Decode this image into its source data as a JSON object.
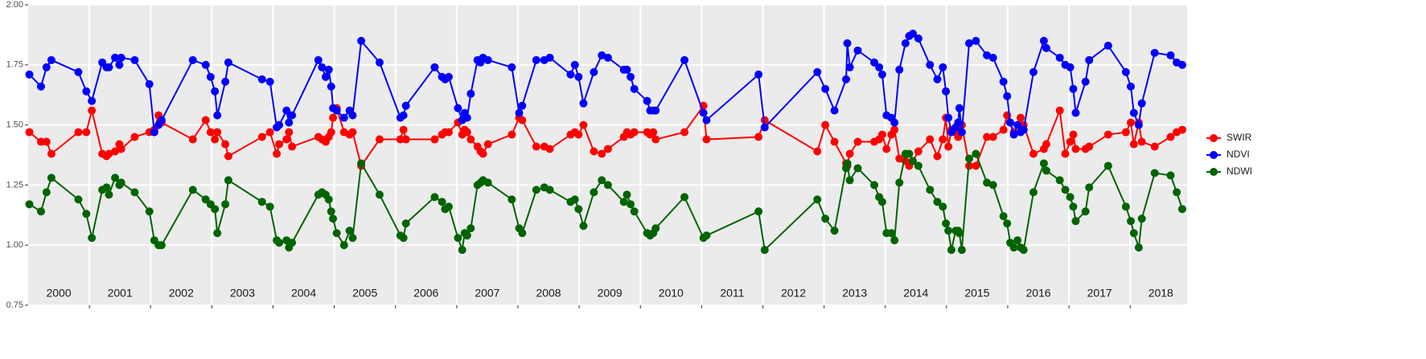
{
  "chart_data": {
    "type": "line",
    "x": [
      2000.02,
      2000.21,
      2000.3,
      2000.38,
      2000.82,
      2000.95,
      2001.04,
      2001.21,
      2001.28,
      2001.32,
      2001.42,
      2001.49,
      2001.52,
      2001.74,
      2001.98,
      2002.06,
      2002.13,
      2002.18,
      2002.69,
      2002.9,
      2002.98,
      2003.05,
      2003.09,
      2003.22,
      2003.27,
      2003.82,
      2003.95,
      2004.06,
      2004.1,
      2004.22,
      2004.26,
      2004.31,
      2004.74,
      2004.8,
      2004.86,
      2004.91,
      2004.95,
      2004.98,
      2005.04,
      2005.16,
      2005.25,
      2005.3,
      2005.44,
      2005.74,
      2006.08,
      2006.13,
      2006.17,
      2006.64,
      2006.76,
      2006.81,
      2006.87,
      2007.02,
      2007.09,
      2007.13,
      2007.17,
      2007.23,
      2007.34,
      2007.39,
      2007.43,
      2007.51,
      2007.9,
      2008.02,
      2008.07,
      2008.3,
      2008.43,
      2008.52,
      2008.86,
      2008.93,
      2008.99,
      2009.07,
      2009.24,
      2009.37,
      2009.47,
      2009.73,
      2009.78,
      2009.84,
      2009.9,
      2010.11,
      2010.16,
      2010.21,
      2010.25,
      2010.72,
      2011.03,
      2011.08,
      2011.93,
      2012.03,
      2012.89,
      2013.02,
      2013.17,
      2013.36,
      2013.38,
      2013.42,
      2013.55,
      2013.82,
      2013.9,
      2013.95,
      2014.02,
      2014.1,
      2014.15,
      2014.23,
      2014.33,
      2014.39,
      2014.45,
      2014.54,
      2014.73,
      2014.85,
      2014.94,
      2014.99,
      2015.03,
      2015.08,
      2015.15,
      2015.19,
      2015.21,
      2015.25,
      2015.37,
      2015.48,
      2015.66,
      2015.76,
      2015.93,
      2015.99,
      2016.04,
      2016.1,
      2016.16,
      2016.21,
      2016.26,
      2016.42,
      2016.59,
      2016.63,
      2016.85,
      2016.94,
      2017.02,
      2017.07,
      2017.11,
      2017.27,
      2017.33,
      2017.64,
      2017.93,
      2018.01,
      2018.06,
      2018.14,
      2018.19,
      2018.4,
      2018.66,
      2018.76,
      2018.85
    ],
    "series": [
      {
        "name": "SWIR",
        "color": "#ff0000",
        "values": [
          1.47,
          1.43,
          1.43,
          1.38,
          1.47,
          1.47,
          1.56,
          1.38,
          1.37,
          1.38,
          1.39,
          1.42,
          1.4,
          1.45,
          1.47,
          1.48,
          1.54,
          1.51,
          1.44,
          1.52,
          1.47,
          1.44,
          1.47,
          1.42,
          1.37,
          1.45,
          1.47,
          1.38,
          1.42,
          1.44,
          1.47,
          1.41,
          1.45,
          1.44,
          1.43,
          1.45,
          1.47,
          1.53,
          1.57,
          1.47,
          1.46,
          1.47,
          1.33,
          1.44,
          1.44,
          1.48,
          1.44,
          1.44,
          1.46,
          1.47,
          1.47,
          1.51,
          1.46,
          1.48,
          1.47,
          1.44,
          1.41,
          1.39,
          1.38,
          1.42,
          1.46,
          1.53,
          1.52,
          1.41,
          1.41,
          1.4,
          1.46,
          1.47,
          1.46,
          1.5,
          1.39,
          1.38,
          1.4,
          1.45,
          1.47,
          1.46,
          1.47,
          1.47,
          1.46,
          1.47,
          1.44,
          1.47,
          1.58,
          1.44,
          1.45,
          1.52,
          1.39,
          1.5,
          1.43,
          1.34,
          1.33,
          1.38,
          1.43,
          1.43,
          1.44,
          1.46,
          1.4,
          1.46,
          1.48,
          1.36,
          1.35,
          1.33,
          1.35,
          1.39,
          1.44,
          1.37,
          1.44,
          1.53,
          1.41,
          1.48,
          1.47,
          1.45,
          1.5,
          1.5,
          1.33,
          1.33,
          1.45,
          1.45,
          1.48,
          1.54,
          1.51,
          1.47,
          1.5,
          1.53,
          1.5,
          1.38,
          1.4,
          1.42,
          1.56,
          1.38,
          1.43,
          1.46,
          1.4,
          1.4,
          1.41,
          1.46,
          1.47,
          1.51,
          1.42,
          1.51,
          1.43,
          1.41,
          1.45,
          1.47,
          1.48
        ]
      },
      {
        "name": "NDVI",
        "color": "#0000ff",
        "values": [
          1.71,
          1.66,
          1.74,
          1.77,
          1.72,
          1.64,
          1.6,
          1.76,
          1.74,
          1.74,
          1.78,
          1.75,
          1.78,
          1.77,
          1.67,
          1.47,
          1.5,
          1.52,
          1.77,
          1.75,
          1.7,
          1.64,
          1.54,
          1.68,
          1.76,
          1.69,
          1.68,
          1.49,
          1.5,
          1.56,
          1.51,
          1.54,
          1.77,
          1.74,
          1.7,
          1.73,
          1.66,
          1.57,
          1.56,
          1.53,
          1.56,
          1.54,
          1.85,
          1.76,
          1.53,
          1.54,
          1.58,
          1.74,
          1.7,
          1.69,
          1.7,
          1.57,
          1.52,
          1.55,
          1.53,
          1.63,
          1.77,
          1.76,
          1.78,
          1.77,
          1.74,
          1.55,
          1.58,
          1.77,
          1.77,
          1.78,
          1.71,
          1.75,
          1.7,
          1.59,
          1.72,
          1.79,
          1.78,
          1.73,
          1.73,
          1.7,
          1.65,
          1.6,
          1.56,
          1.56,
          1.56,
          1.77,
          1.55,
          1.52,
          1.71,
          1.49,
          1.72,
          1.65,
          1.56,
          1.69,
          1.84,
          1.74,
          1.81,
          1.76,
          1.74,
          1.71,
          1.54,
          1.53,
          1.51,
          1.73,
          1.84,
          1.87,
          1.88,
          1.86,
          1.75,
          1.69,
          1.74,
          1.64,
          1.53,
          1.47,
          1.49,
          1.51,
          1.57,
          1.47,
          1.84,
          1.85,
          1.79,
          1.78,
          1.68,
          1.62,
          1.51,
          1.46,
          1.5,
          1.47,
          1.48,
          1.72,
          1.85,
          1.82,
          1.78,
          1.75,
          1.74,
          1.65,
          1.55,
          1.68,
          1.77,
          1.83,
          1.72,
          1.66,
          1.55,
          1.5,
          1.59,
          1.8,
          1.79,
          1.76,
          1.75
        ]
      },
      {
        "name": "NDWI",
        "color": "#006400",
        "values": [
          1.17,
          1.14,
          1.22,
          1.28,
          1.19,
          1.13,
          1.03,
          1.23,
          1.24,
          1.21,
          1.28,
          1.25,
          1.26,
          1.22,
          1.14,
          1.02,
          1.0,
          1.0,
          1.23,
          1.19,
          1.17,
          1.15,
          1.05,
          1.17,
          1.27,
          1.18,
          1.16,
          1.02,
          1.01,
          1.02,
          0.99,
          1.01,
          1.21,
          1.22,
          1.21,
          1.19,
          1.14,
          1.11,
          1.05,
          1.0,
          1.06,
          1.03,
          1.34,
          1.21,
          1.04,
          1.03,
          1.09,
          1.2,
          1.18,
          1.15,
          1.16,
          1.03,
          0.98,
          1.05,
          1.04,
          1.07,
          1.25,
          1.26,
          1.27,
          1.26,
          1.19,
          1.07,
          1.05,
          1.23,
          1.24,
          1.23,
          1.18,
          1.19,
          1.15,
          1.08,
          1.22,
          1.27,
          1.25,
          1.18,
          1.21,
          1.17,
          1.14,
          1.05,
          1.04,
          1.05,
          1.07,
          1.2,
          1.03,
          1.04,
          1.14,
          0.98,
          1.19,
          1.11,
          1.06,
          1.32,
          1.34,
          1.27,
          1.32,
          1.25,
          1.2,
          1.18,
          1.05,
          1.05,
          1.02,
          1.26,
          1.38,
          1.38,
          1.35,
          1.33,
          1.23,
          1.18,
          1.16,
          1.09,
          1.06,
          0.98,
          1.06,
          1.06,
          1.05,
          0.98,
          1.36,
          1.38,
          1.26,
          1.25,
          1.12,
          1.09,
          1.01,
          0.99,
          1.02,
          0.99,
          0.98,
          1.22,
          1.34,
          1.31,
          1.27,
          1.23,
          1.2,
          1.16,
          1.1,
          1.14,
          1.24,
          1.33,
          1.16,
          1.1,
          1.05,
          0.99,
          1.11,
          1.3,
          1.29,
          1.22,
          1.15
        ]
      }
    ],
    "xlim": [
      2000,
      2018.93
    ],
    "ylim": [
      0.75,
      2.0
    ],
    "yticks": [
      {
        "value": 0.75,
        "label": "0.75"
      },
      {
        "value": 1.0,
        "label": "1.00"
      },
      {
        "value": 1.25,
        "label": "1.25"
      },
      {
        "value": 1.5,
        "label": "1.50"
      },
      {
        "value": 1.75,
        "label": "1.75"
      },
      {
        "value": 2.0,
        "label": "2.00"
      }
    ],
    "xticks": [
      {
        "value": 2000.5,
        "label": "2000"
      },
      {
        "value": 2001.5,
        "label": "2001"
      },
      {
        "value": 2002.5,
        "label": "2002"
      },
      {
        "value": 2003.5,
        "label": "2003"
      },
      {
        "value": 2004.5,
        "label": "2004"
      },
      {
        "value": 2005.5,
        "label": "2005"
      },
      {
        "value": 2006.5,
        "label": "2006"
      },
      {
        "value": 2007.5,
        "label": "2007"
      },
      {
        "value": 2008.5,
        "label": "2008"
      },
      {
        "value": 2009.5,
        "label": "2009"
      },
      {
        "value": 2010.5,
        "label": "2010"
      },
      {
        "value": 2011.5,
        "label": "2011"
      },
      {
        "value": 2012.5,
        "label": "2012"
      },
      {
        "value": 2013.5,
        "label": "2013"
      },
      {
        "value": 2014.5,
        "label": "2014"
      },
      {
        "value": 2015.5,
        "label": "2015"
      },
      {
        "value": 2016.5,
        "label": "2016"
      },
      {
        "value": 2017.5,
        "label": "2017"
      },
      {
        "value": 2018.5,
        "label": "2018"
      }
    ],
    "xgrid": [
      2001,
      2002,
      2003,
      2004,
      2005,
      2006,
      2007,
      2008,
      2009,
      2010,
      2011,
      2012,
      2013,
      2014,
      2015,
      2016,
      2017,
      2018
    ],
    "grid": true,
    "legend": "right"
  }
}
